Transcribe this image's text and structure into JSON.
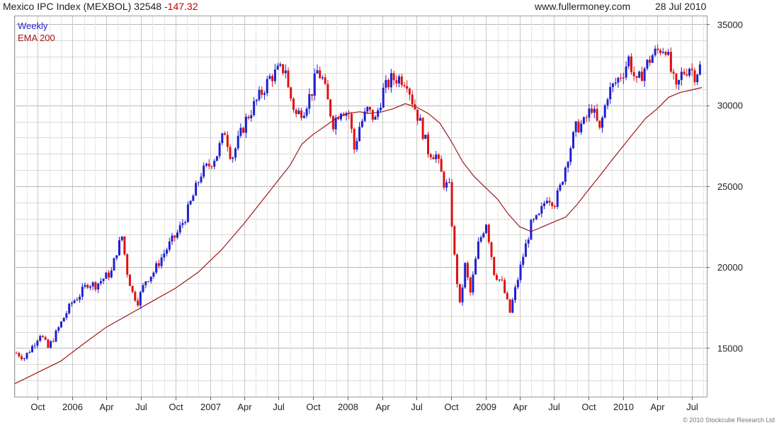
{
  "header": {
    "title": "Mexico IPC Index (MEXBOL) 32548",
    "change": "-147.32",
    "website": "www.fullermoney.com",
    "date": "28 Jul 2010"
  },
  "footer": {
    "copyright": "© 2010 Stockcube Research Ltd"
  },
  "chart_data": {
    "type": "candlestick",
    "legend": [
      "Weekly",
      "EMA 200"
    ],
    "legend_position": "top-left",
    "colors": {
      "up": "#1f1fd0",
      "down": "#e01010",
      "ema": "#a01818",
      "grid": "#d8d8d8",
      "grid_major": "#b8b8b8"
    },
    "grid": true,
    "ylim": [
      12000,
      35500
    ],
    "y_ticks": [
      15000,
      20000,
      25000,
      30000,
      35000
    ],
    "y_axis_side": "right",
    "x_ticks": [
      "Oct",
      "2006",
      "Apr",
      "Jul",
      "Oct",
      "2007",
      "Apr",
      "Jul",
      "Oct",
      "2008",
      "Apr",
      "Jul",
      "Oct",
      "2009",
      "Apr",
      "Jul",
      "Oct",
      "2010",
      "Apr",
      "Jul"
    ],
    "x_range": [
      "2005-08-01",
      "2010-08-10"
    ],
    "close_path": [
      [
        "2005-08-05",
        14700
      ],
      [
        "2005-08-26",
        14400
      ],
      [
        "2005-09-16",
        15100
      ],
      [
        "2005-10-07",
        15900
      ],
      [
        "2005-10-28",
        15000
      ],
      [
        "2005-11-18",
        15900
      ],
      [
        "2005-12-09",
        16900
      ],
      [
        "2005-12-30",
        17800
      ],
      [
        "2006-01-20",
        18300
      ],
      [
        "2006-02-10",
        19000
      ],
      [
        "2006-03-03",
        18900
      ],
      [
        "2006-03-24",
        19300
      ],
      [
        "2006-04-14",
        19700
      ],
      [
        "2006-04-28",
        21000
      ],
      [
        "2006-05-12",
        21900
      ],
      [
        "2006-05-26",
        19700
      ],
      [
        "2006-06-09",
        18400
      ],
      [
        "2006-06-23",
        17900
      ],
      [
        "2006-07-14",
        19200
      ],
      [
        "2006-08-04",
        19700
      ],
      [
        "2006-08-25",
        20600
      ],
      [
        "2006-09-15",
        21400
      ],
      [
        "2006-10-06",
        22100
      ],
      [
        "2006-10-27",
        23100
      ],
      [
        "2006-11-17",
        24400
      ],
      [
        "2006-12-08",
        25800
      ],
      [
        "2006-12-29",
        26300
      ],
      [
        "2007-01-19",
        27000
      ],
      [
        "2007-02-09",
        28400
      ],
      [
        "2007-02-27",
        26700
      ],
      [
        "2007-03-16",
        27800
      ],
      [
        "2007-04-06",
        29100
      ],
      [
        "2007-04-27",
        30000
      ],
      [
        "2007-05-18",
        30800
      ],
      [
        "2007-06-08",
        31700
      ],
      [
        "2007-06-29",
        32100
      ],
      [
        "2007-07-20",
        32300
      ],
      [
        "2007-07-27",
        31000
      ],
      [
        "2007-08-10",
        29900
      ],
      [
        "2007-08-17",
        29400
      ],
      [
        "2007-09-07",
        29800
      ],
      [
        "2007-09-28",
        30900
      ],
      [
        "2007-10-12",
        32100
      ],
      [
        "2007-10-26",
        31600
      ],
      [
        "2007-11-09",
        30200
      ],
      [
        "2007-11-23",
        28900
      ],
      [
        "2007-12-14",
        29800
      ],
      [
        "2008-01-04",
        29500
      ],
      [
        "2008-01-18",
        27300
      ],
      [
        "2008-02-01",
        28700
      ],
      [
        "2008-02-22",
        29700
      ],
      [
        "2008-03-14",
        29100
      ],
      [
        "2008-04-04",
        30900
      ],
      [
        "2008-04-25",
        31600
      ],
      [
        "2008-05-16",
        31700
      ],
      [
        "2008-06-06",
        31500
      ],
      [
        "2008-06-20",
        30300
      ],
      [
        "2008-07-11",
        28900
      ],
      [
        "2008-08-01",
        27200
      ],
      [
        "2008-08-22",
        26900
      ],
      [
        "2008-09-12",
        25200
      ],
      [
        "2008-09-26",
        24900
      ],
      [
        "2008-10-10",
        20600
      ],
      [
        "2008-10-24",
        17600
      ],
      [
        "2008-11-07",
        20100
      ],
      [
        "2008-11-21",
        18400
      ],
      [
        "2008-12-12",
        21400
      ],
      [
        "2009-01-02",
        22800
      ],
      [
        "2009-01-23",
        19700
      ],
      [
        "2009-02-13",
        19000
      ],
      [
        "2009-03-06",
        17200
      ],
      [
        "2009-03-20",
        18600
      ],
      [
        "2009-04-10",
        20700
      ],
      [
        "2009-05-01",
        22600
      ],
      [
        "2009-05-22",
        23100
      ],
      [
        "2009-06-12",
        24400
      ],
      [
        "2009-07-03",
        24000
      ],
      [
        "2009-07-17",
        24900
      ],
      [
        "2009-08-07",
        26900
      ],
      [
        "2009-08-28",
        28600
      ],
      [
        "2009-09-18",
        28900
      ],
      [
        "2009-10-09",
        29900
      ],
      [
        "2009-10-30",
        28400
      ],
      [
        "2009-11-20",
        30700
      ],
      [
        "2009-12-11",
        31400
      ],
      [
        "2010-01-01",
        32100
      ],
      [
        "2010-01-15",
        32900
      ],
      [
        "2010-02-05",
        31300
      ],
      [
        "2010-02-26",
        32300
      ],
      [
        "2010-03-19",
        33100
      ],
      [
        "2010-04-09",
        33500
      ],
      [
        "2010-04-23",
        33600
      ],
      [
        "2010-05-07",
        32100
      ],
      [
        "2010-05-21",
        30900
      ],
      [
        "2010-06-04",
        31900
      ],
      [
        "2010-06-25",
        32400
      ],
      [
        "2010-07-09",
        31900
      ],
      [
        "2010-07-28",
        32548
      ]
    ],
    "ema_200": [
      [
        "2005-08-01",
        12800
      ],
      [
        "2005-10-01",
        13500
      ],
      [
        "2005-12-01",
        14200
      ],
      [
        "2006-02-01",
        15300
      ],
      [
        "2006-04-01",
        16300
      ],
      [
        "2006-06-01",
        17100
      ],
      [
        "2006-08-01",
        17900
      ],
      [
        "2006-10-01",
        18700
      ],
      [
        "2006-12-01",
        19700
      ],
      [
        "2007-02-01",
        21100
      ],
      [
        "2007-04-01",
        22700
      ],
      [
        "2007-06-01",
        24500
      ],
      [
        "2007-08-01",
        26300
      ],
      [
        "2007-09-01",
        27600
      ],
      [
        "2007-10-01",
        28200
      ],
      [
        "2007-11-01",
        28700
      ],
      [
        "2007-12-01",
        29200
      ],
      [
        "2008-01-01",
        29500
      ],
      [
        "2008-02-01",
        29600
      ],
      [
        "2008-03-01",
        29500
      ],
      [
        "2008-04-01",
        29600
      ],
      [
        "2008-05-01",
        29800
      ],
      [
        "2008-06-01",
        30100
      ],
      [
        "2008-07-01",
        29900
      ],
      [
        "2008-08-01",
        29500
      ],
      [
        "2008-09-01",
        28900
      ],
      [
        "2008-10-01",
        27800
      ],
      [
        "2008-11-01",
        26500
      ],
      [
        "2008-12-01",
        25600
      ],
      [
        "2009-01-01",
        24900
      ],
      [
        "2009-02-01",
        24200
      ],
      [
        "2009-03-01",
        23300
      ],
      [
        "2009-04-01",
        22500
      ],
      [
        "2009-05-01",
        22200
      ],
      [
        "2009-06-01",
        22500
      ],
      [
        "2009-07-01",
        22800
      ],
      [
        "2009-08-01",
        23100
      ],
      [
        "2009-09-01",
        23900
      ],
      [
        "2009-10-01",
        24800
      ],
      [
        "2009-11-01",
        25700
      ],
      [
        "2009-12-01",
        26600
      ],
      [
        "2010-01-01",
        27500
      ],
      [
        "2010-02-01",
        28400
      ],
      [
        "2010-03-01",
        29200
      ],
      [
        "2010-04-01",
        29800
      ],
      [
        "2010-05-01",
        30500
      ],
      [
        "2010-06-01",
        30800
      ],
      [
        "2010-07-01",
        30950
      ],
      [
        "2010-07-28",
        31100
      ]
    ]
  }
}
